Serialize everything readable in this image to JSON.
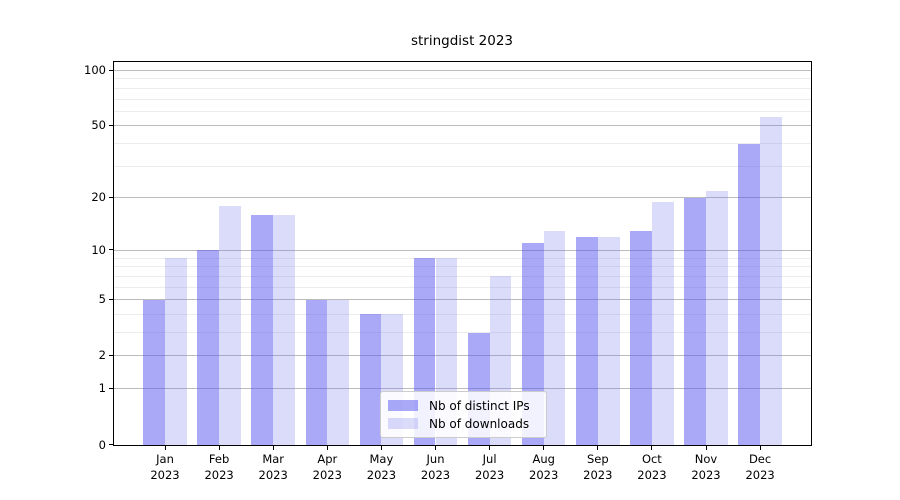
{
  "title": "stringdist 2023",
  "chart_data": {
    "type": "bar",
    "title": "stringdist 2023",
    "categories": [
      "Jan 2023",
      "Feb 2023",
      "Mar 2023",
      "Apr 2023",
      "May 2023",
      "Jun 2023",
      "Jul 2023",
      "Aug 2023",
      "Sep 2023",
      "Oct 2023",
      "Nov 2023",
      "Dec 2023"
    ],
    "series": [
      {
        "name": "Nb of distinct IPs",
        "color": "#a9a9f8",
        "values": [
          5,
          10,
          16,
          5,
          4,
          9,
          3,
          11,
          12,
          13,
          20,
          40
        ]
      },
      {
        "name": "Nb of downloads",
        "color": "#dbdbfa",
        "values": [
          9,
          18,
          16,
          5,
          4,
          9,
          7,
          13,
          12,
          19,
          22,
          56
        ]
      }
    ],
    "yscale": "log1p",
    "y_ticks": [
      0,
      1,
      2,
      5,
      10,
      20,
      50,
      100
    ],
    "y_minor_gridlines": [
      3,
      4,
      6,
      7,
      8,
      9,
      30,
      40,
      60,
      70,
      80,
      90
    ],
    "ylim": [
      0,
      112
    ],
    "xlabel": "",
    "ylabel": "",
    "grid": true,
    "legend_position": "lower center"
  },
  "colors": {
    "bar_ips_rgba": "rgba(83,83,241,0.5)",
    "bar_downloads_rgba": "rgba(110,110,235,0.25)",
    "grid_major": "#bcbcbc",
    "grid_minor": "#ececec",
    "axis": "#000000",
    "legend_border": "#cccccc"
  }
}
